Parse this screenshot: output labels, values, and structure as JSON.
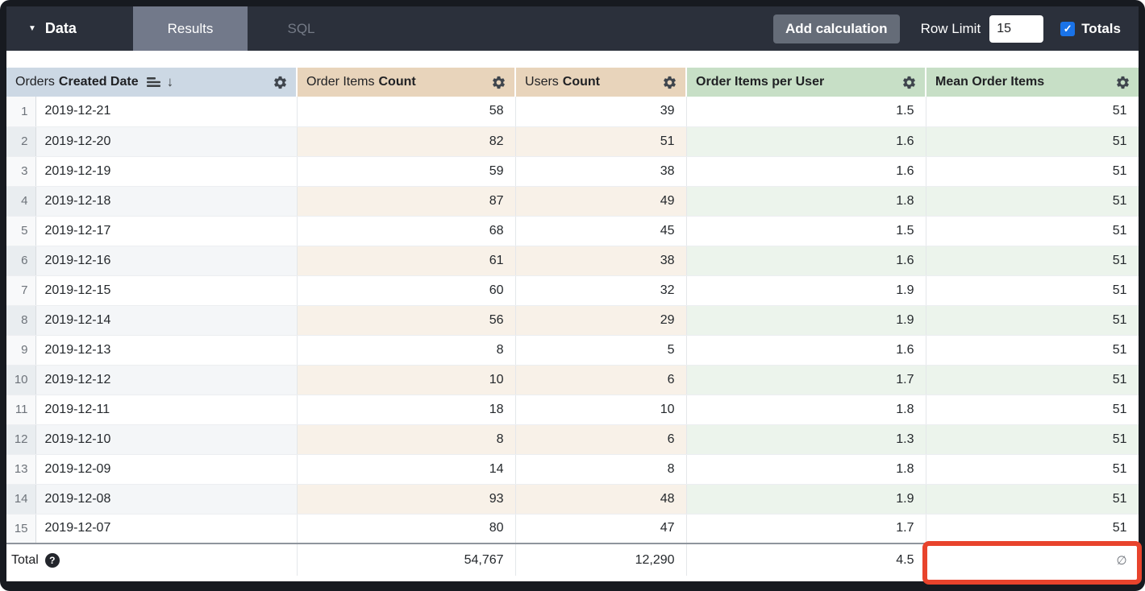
{
  "topbar": {
    "menu_label": "Data",
    "tabs": [
      {
        "label": "Results"
      },
      {
        "label": "SQL"
      }
    ],
    "add_calculation": "Add calculation",
    "row_limit_label": "Row Limit",
    "row_limit_value": "15",
    "totals_label": "Totals",
    "totals_checked": true
  },
  "table": {
    "headers": [
      {
        "regular": "Orders",
        "bold": "Created Date",
        "sorted": "descending"
      },
      {
        "regular": "Order Items",
        "bold": "Count"
      },
      {
        "regular": "Users",
        "bold": "Count"
      },
      {
        "regular": "",
        "bold": "Order Items per User"
      },
      {
        "regular": "",
        "bold": "Mean Order Items"
      }
    ],
    "rows": [
      {
        "n": "1",
        "date": "2019-12-21",
        "oi": "58",
        "users": "39",
        "oipu": "1.5",
        "mean": "51"
      },
      {
        "n": "2",
        "date": "2019-12-20",
        "oi": "82",
        "users": "51",
        "oipu": "1.6",
        "mean": "51"
      },
      {
        "n": "3",
        "date": "2019-12-19",
        "oi": "59",
        "users": "38",
        "oipu": "1.6",
        "mean": "51"
      },
      {
        "n": "4",
        "date": "2019-12-18",
        "oi": "87",
        "users": "49",
        "oipu": "1.8",
        "mean": "51"
      },
      {
        "n": "5",
        "date": "2019-12-17",
        "oi": "68",
        "users": "45",
        "oipu": "1.5",
        "mean": "51"
      },
      {
        "n": "6",
        "date": "2019-12-16",
        "oi": "61",
        "users": "38",
        "oipu": "1.6",
        "mean": "51"
      },
      {
        "n": "7",
        "date": "2019-12-15",
        "oi": "60",
        "users": "32",
        "oipu": "1.9",
        "mean": "51"
      },
      {
        "n": "8",
        "date": "2019-12-14",
        "oi": "56",
        "users": "29",
        "oipu": "1.9",
        "mean": "51"
      },
      {
        "n": "9",
        "date": "2019-12-13",
        "oi": "8",
        "users": "5",
        "oipu": "1.6",
        "mean": "51"
      },
      {
        "n": "10",
        "date": "2019-12-12",
        "oi": "10",
        "users": "6",
        "oipu": "1.7",
        "mean": "51"
      },
      {
        "n": "11",
        "date": "2019-12-11",
        "oi": "18",
        "users": "10",
        "oipu": "1.8",
        "mean": "51"
      },
      {
        "n": "12",
        "date": "2019-12-10",
        "oi": "8",
        "users": "6",
        "oipu": "1.3",
        "mean": "51"
      },
      {
        "n": "13",
        "date": "2019-12-09",
        "oi": "14",
        "users": "8",
        "oipu": "1.8",
        "mean": "51"
      },
      {
        "n": "14",
        "date": "2019-12-08",
        "oi": "93",
        "users": "48",
        "oipu": "1.9",
        "mean": "51"
      },
      {
        "n": "15",
        "date": "2019-12-07",
        "oi": "80",
        "users": "47",
        "oipu": "1.7",
        "mean": "51"
      }
    ],
    "total": {
      "label": "Total",
      "order_items_count": "54,767",
      "users_count": "12,290",
      "order_items_per_user": "4.5",
      "mean_order_items": "∅"
    }
  },
  "colors": {
    "topbar_bg": "#2b303b",
    "active_tab_bg": "#72798a",
    "checkbox_blue": "#1a73e8",
    "header_dimension_bg": "#ccd8e4",
    "header_measure_bg": "#e8d4bb",
    "header_calc_bg": "#c7dfc6",
    "stripe_measure": "#f8f1e8",
    "stripe_calc": "#ecf4ec",
    "annotation_red": "#e8432c"
  }
}
